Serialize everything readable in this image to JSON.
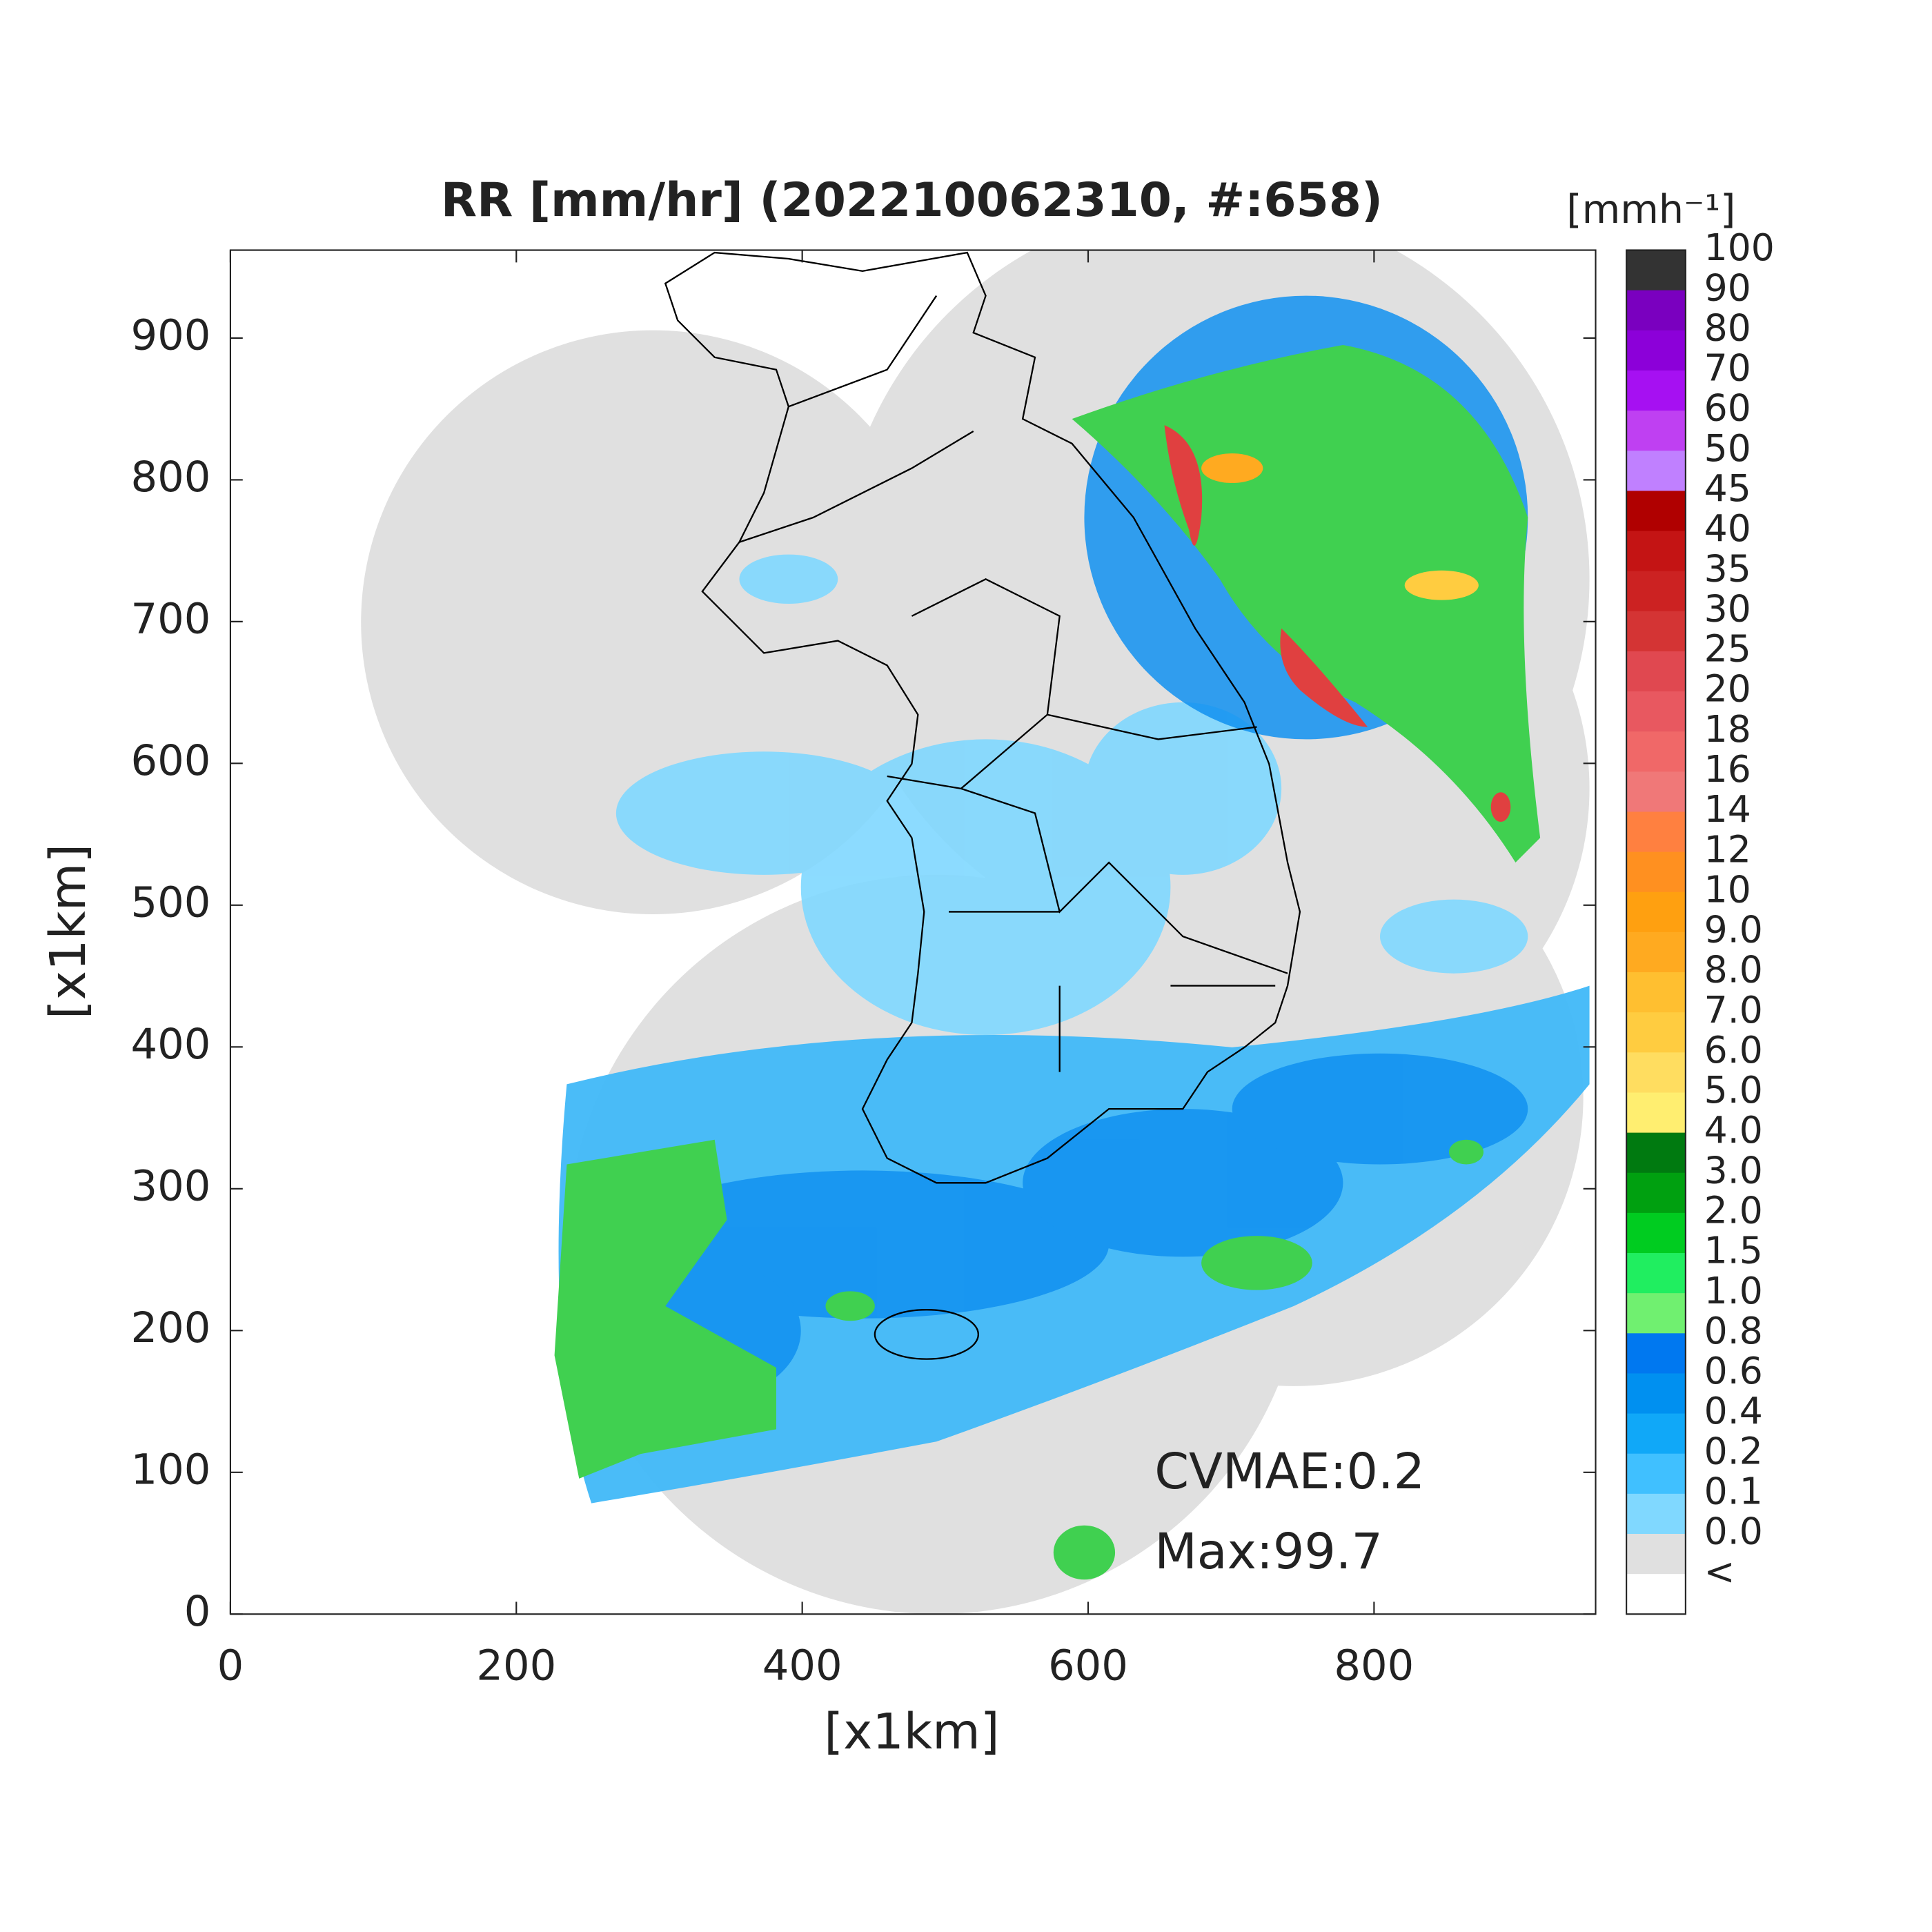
{
  "title": "RR [mm/hr] (202210062310, #:658)",
  "xlabel": "[x1km]",
  "ylabel": "[x1km]",
  "xlim": [
    0,
    955
  ],
  "ylim": [
    0,
    962
  ],
  "xticks": [
    0,
    200,
    400,
    600,
    800
  ],
  "yticks": [
    0,
    100,
    200,
    300,
    400,
    500,
    600,
    700,
    800,
    900
  ],
  "colorbar": {
    "unit": "[mmh⁻¹]",
    "labels": [
      "100",
      "90",
      "80",
      "70",
      "60",
      "50",
      "45",
      "40",
      "35",
      "30",
      "25",
      "20",
      "18",
      "16",
      "14",
      "12",
      "10",
      "9.0",
      "8.0",
      "7.0",
      "6.0",
      "5.0",
      "4.0",
      "3.0",
      "2.0",
      "1.5",
      "1.0",
      "0.8",
      "0.6",
      "0.4",
      "0.2",
      "0.1",
      "0.0",
      "<"
    ],
    "colors": [
      "#333333",
      "#7a00bf",
      "#8c00d9",
      "#a610f2",
      "#bf40f2",
      "#c080ff",
      "#b00000",
      "#c41414",
      "#cc2222",
      "#d43434",
      "#e04850",
      "#e85860",
      "#f06868",
      "#f07878",
      "#ff8040",
      "#ff9020",
      "#ffa010",
      "#ffaa20",
      "#ffbf30",
      "#ffcc40",
      "#ffdd60",
      "#ffee70",
      "#007a10",
      "#00a010",
      "#00cc20",
      "#20ee60",
      "#70f070",
      "#0078f0",
      "#0090f0",
      "#10a8f8",
      "#40c0ff",
      "#80d8ff",
      "#e0e0e0",
      "#ffffff"
    ]
  },
  "annotations": [
    "CVMAE:0.2",
    "Max:99.7"
  ]
}
